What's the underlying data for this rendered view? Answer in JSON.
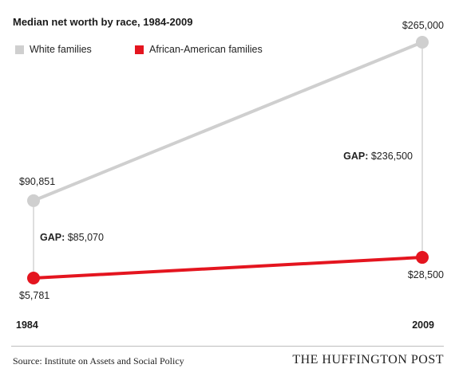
{
  "chart_data": {
    "type": "line",
    "title": "Median net worth by race, 1984-2009",
    "categories": [
      "1984",
      "2009"
    ],
    "series": [
      {
        "name": "White families",
        "values": [
          90851,
          265000
        ],
        "labels": [
          "$90,851",
          "$265,000"
        ],
        "color": "#cfcfcf"
      },
      {
        "name": "African-American families",
        "values": [
          5781,
          28500
        ],
        "labels": [
          "$5,781",
          "$28,500"
        ],
        "color": "#e4151f"
      }
    ],
    "gaps": [
      {
        "prefix": "GAP:",
        "value": "$85,070"
      },
      {
        "prefix": "GAP:",
        "value": "$236,500"
      }
    ],
    "ylim": [
      5781,
      265000
    ],
    "legend_position": "top-left",
    "grid": false
  },
  "footer": {
    "source": "Source: Institute on Assets and Social Policy",
    "brand": "THE HUFFINGTON POST"
  }
}
